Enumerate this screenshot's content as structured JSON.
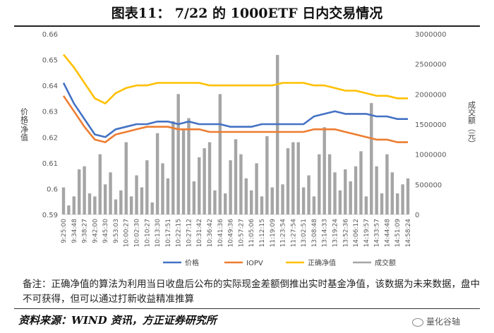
{
  "header": {
    "title": "图表11：      7/22 的 1000ETF 日内交易情况"
  },
  "note": "备注：正确净值的算法为利用当日收盘后公布的实际现金差额倒推出实时基金净值，该数据为未来数据，盘中不可获得，但可以通过打新收益精准推算",
  "source": "资料来源：WIND 资讯，方正证券研究所",
  "logo_text": "量化谷轴",
  "chart_data": {
    "type": "line",
    "ylabel": "价格/净值",
    "y2label": "成交额（元）",
    "ylim": [
      0.59,
      0.66
    ],
    "y_ticks": [
      "0.59",
      "0.6",
      "0.61",
      "0.62",
      "0.63",
      "0.64",
      "0.65",
      "0.66"
    ],
    "y2lim": [
      0,
      3000000
    ],
    "y2_ticks": [
      "0",
      "500000",
      "1000000",
      "1500000",
      "2000000",
      "2500000",
      "3000000"
    ],
    "x_ticks": [
      "9:25:00",
      "9:34:48",
      "9:38:27",
      "9:42:00",
      "9:45:30",
      "9:53:03",
      "10:00:27",
      "10:02:30",
      "10:10:27",
      "10:13:30",
      "10:17:51",
      "10:22:15",
      "10:27:12",
      "10:31:42",
      "10:36:42",
      "10:41:36",
      "10:49:36",
      "10:57:27",
      "11:05:06",
      "11:12:15",
      "11:19:09",
      "11:23:54",
      "11:27:54",
      "13:02:51",
      "13:08:48",
      "13:14:33",
      "13:19:24",
      "13:52:36",
      "14:06:12",
      "14:19:57",
      "14:33:57",
      "14:44:48",
      "14:51:09",
      "14:58:24"
    ],
    "legend_position": "bottom",
    "series": [
      {
        "name": "价格",
        "color": "#4472C4",
        "x": [
          0,
          1,
          2,
          3,
          4,
          5,
          6,
          7,
          8,
          9,
          10,
          11,
          12,
          13,
          14,
          15,
          16,
          17,
          18,
          19,
          20,
          21,
          22,
          23,
          24,
          25,
          26,
          27,
          28,
          29,
          30,
          31,
          32,
          33
        ],
        "values": [
          0.641,
          0.633,
          0.627,
          0.621,
          0.62,
          0.623,
          0.624,
          0.625,
          0.625,
          0.626,
          0.626,
          0.625,
          0.626,
          0.625,
          0.625,
          0.625,
          0.624,
          0.624,
          0.624,
          0.625,
          0.625,
          0.625,
          0.625,
          0.625,
          0.628,
          0.629,
          0.63,
          0.629,
          0.629,
          0.629,
          0.628,
          0.628,
          0.627,
          0.627
        ]
      },
      {
        "name": "IOPV",
        "color": "#ED7D31",
        "x": [
          0,
          1,
          2,
          3,
          4,
          5,
          6,
          7,
          8,
          9,
          10,
          11,
          12,
          13,
          14,
          15,
          16,
          17,
          18,
          19,
          20,
          21,
          22,
          23,
          24,
          25,
          26,
          27,
          28,
          29,
          30,
          31,
          32,
          33
        ],
        "values": [
          0.636,
          0.63,
          0.624,
          0.619,
          0.618,
          0.621,
          0.622,
          0.623,
          0.624,
          0.624,
          0.624,
          0.623,
          0.623,
          0.623,
          0.622,
          0.622,
          0.622,
          0.622,
          0.622,
          0.622,
          0.622,
          0.622,
          0.622,
          0.622,
          0.623,
          0.623,
          0.623,
          0.622,
          0.621,
          0.62,
          0.619,
          0.619,
          0.618,
          0.618
        ]
      },
      {
        "name": "正确净值",
        "color": "#FFC000",
        "x": [
          0,
          1,
          2,
          3,
          4,
          5,
          6,
          7,
          8,
          9,
          10,
          11,
          12,
          13,
          14,
          15,
          16,
          17,
          18,
          19,
          20,
          21,
          22,
          23,
          24,
          25,
          26,
          27,
          28,
          29,
          30,
          31,
          32,
          33
        ],
        "values": [
          0.652,
          0.647,
          0.641,
          0.635,
          0.633,
          0.637,
          0.639,
          0.64,
          0.64,
          0.641,
          0.641,
          0.641,
          0.641,
          0.641,
          0.64,
          0.64,
          0.64,
          0.64,
          0.64,
          0.64,
          0.64,
          0.641,
          0.641,
          0.641,
          0.64,
          0.64,
          0.639,
          0.638,
          0.638,
          0.637,
          0.636,
          0.636,
          0.635,
          0.635
        ]
      }
    ],
    "bar_series": {
      "name": "成交额",
      "color": "#A5A5A5",
      "axis": "right",
      "x": [
        0,
        0.5,
        1,
        1.5,
        2,
        2.5,
        3,
        3.5,
        4,
        4.5,
        5,
        5.5,
        6,
        6.5,
        7,
        7.5,
        8,
        8.5,
        9,
        9.5,
        10,
        10.5,
        11,
        11.5,
        12,
        12.5,
        13,
        13.5,
        14,
        14.5,
        15,
        15.5,
        16,
        16.5,
        17,
        17.5,
        18,
        18.5,
        19,
        19.5,
        20,
        20.5,
        21,
        21.5,
        22,
        22.5,
        23,
        23.5,
        24,
        24.5,
        25,
        25.5,
        26,
        26.5,
        27,
        27.5,
        28,
        28.5,
        29,
        29.5,
        30,
        30.5,
        31,
        31.5,
        32,
        32.5,
        33
      ],
      "values": [
        450000,
        150000,
        300000,
        750000,
        800000,
        350000,
        300000,
        1000000,
        500000,
        700000,
        250000,
        400000,
        1200000,
        300000,
        650000,
        450000,
        900000,
        200000,
        1350000,
        850000,
        600000,
        1550000,
        2000000,
        1400000,
        1600000,
        550000,
        950000,
        1100000,
        1200000,
        400000,
        2000000,
        350000,
        900000,
        1250000,
        1000000,
        600000,
        400000,
        850000,
        300000,
        1300000,
        450000,
        2650000,
        500000,
        1100000,
        1200000,
        1200000,
        450000,
        650000,
        300000,
        1000000,
        1450000,
        1000000,
        700000,
        400000,
        750000,
        550000,
        800000,
        1050000,
        300000,
        1850000,
        800000,
        350000,
        1000000,
        700000,
        350000,
        500000,
        600000
      ]
    }
  }
}
